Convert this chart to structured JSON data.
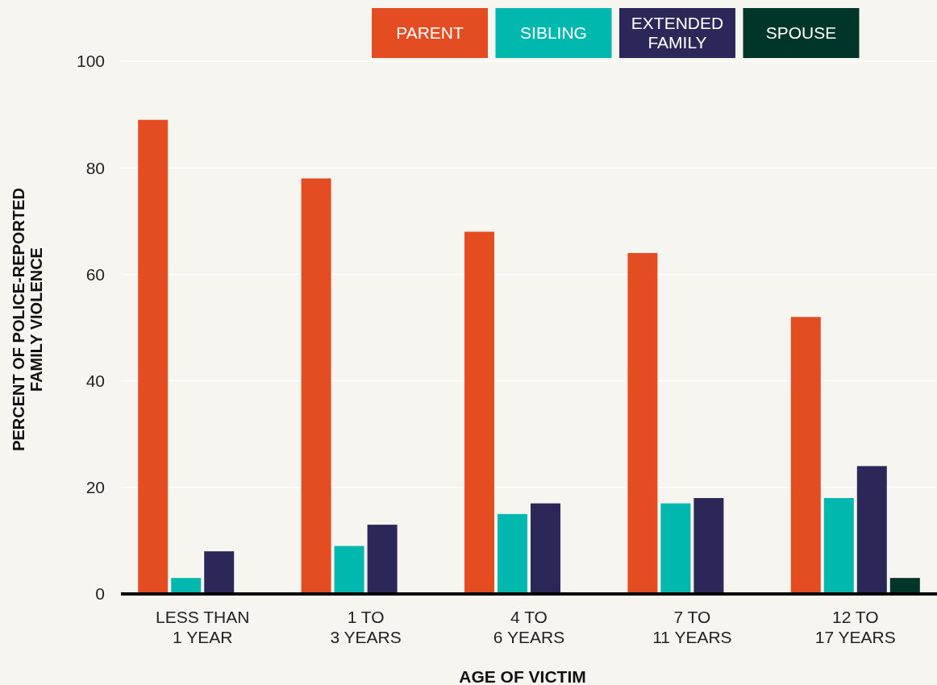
{
  "chart_data": {
    "type": "bar",
    "xlabel": "AGE OF VICTIM",
    "ylabel": "PERCENT OF POLICE-REPORTED FAMILY VIOLENCE",
    "categories": [
      "LESS THAN 1 YEAR",
      "1 TO 3 YEARS",
      "4 TO 6 YEARS",
      "7 TO 11 YEARS",
      "12 TO 17 YEARS"
    ],
    "series": [
      {
        "name": "PARENT",
        "color": "#e44c22",
        "values": [
          89,
          78,
          68,
          64,
          52
        ]
      },
      {
        "name": "SIBLING",
        "color": "#00b8ad",
        "values": [
          3,
          9,
          15,
          17,
          18
        ]
      },
      {
        "name": "EXTENDED FAMILY",
        "color": "#2b2859",
        "values": [
          8,
          13,
          17,
          18,
          24
        ]
      },
      {
        "name": "SPOUSE",
        "color": "#00362a",
        "values": [
          0,
          0,
          0,
          0,
          3
        ]
      }
    ],
    "ylim": [
      0,
      100
    ],
    "yticks": [
      0,
      20,
      40,
      60,
      80,
      100
    ],
    "grid": "y",
    "legend": "top"
  }
}
